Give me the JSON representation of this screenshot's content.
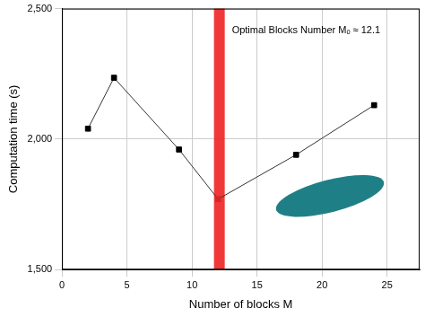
{
  "chart_data": {
    "type": "line",
    "x_label": "Number of blocks M",
    "y_label": "Computation time (s)",
    "x": [
      2,
      4,
      9,
      12,
      18,
      24
    ],
    "values": [
      2040,
      2235,
      1960,
      1770,
      1940,
      2130
    ],
    "colors": [
      "#000000",
      "#000000",
      "#000000",
      "#d62728",
      "#000000",
      "#000000"
    ],
    "marker": "square",
    "xlim": [
      0,
      27.5
    ],
    "xticks": [
      0,
      5,
      10,
      15,
      20,
      25
    ],
    "ylim": [
      1500,
      2500
    ],
    "yticks": [
      1500,
      2000,
      2500
    ],
    "grid": true,
    "optimum": {
      "x": 12.1,
      "label": "Optimal Blocks Number Mₒ ≈ 12.1",
      "color": "#ee2222"
    }
  }
}
